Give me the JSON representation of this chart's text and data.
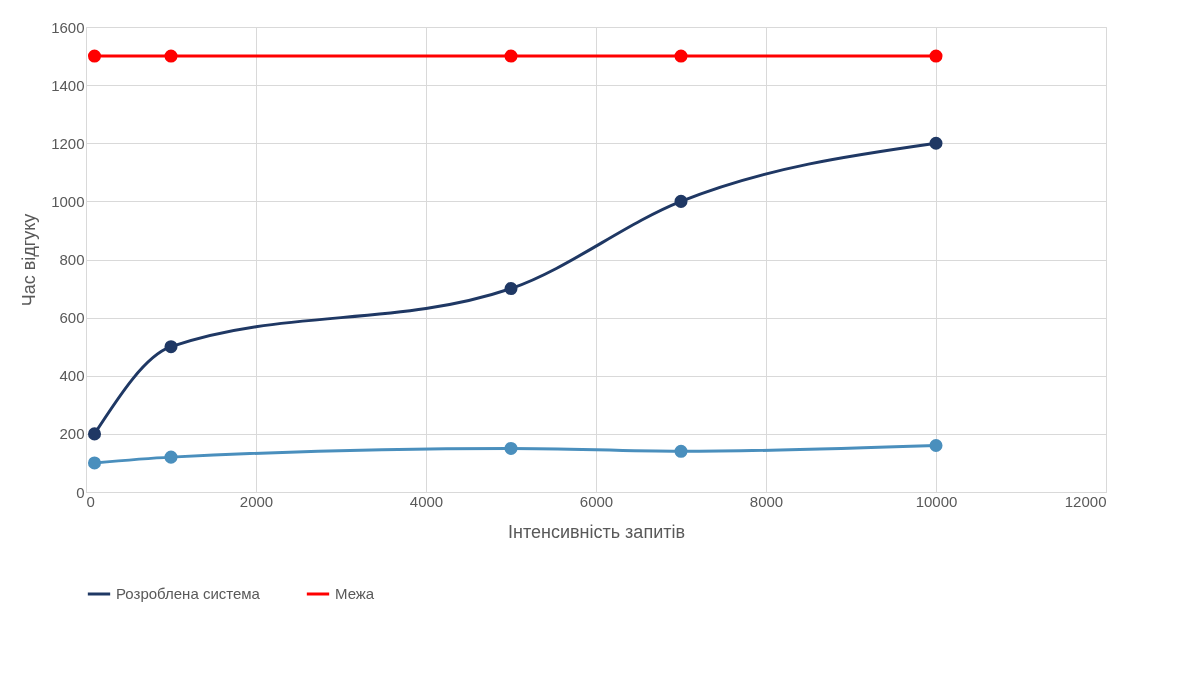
{
  "chart_data": {
    "type": "line",
    "xlabel": "Інтенсивність запитів",
    "ylabel": "Час відгуку",
    "x": [
      100,
      1000,
      5000,
      7000,
      10000
    ],
    "series": [
      {
        "name": "Розроблена система",
        "color": "#1f3864",
        "values": [
          200,
          500,
          700,
          1000,
          1200
        ]
      },
      {
        "color": "#4a8fbd",
        "values": [
          100,
          120,
          150,
          140,
          160
        ]
      },
      {
        "name": "Межа",
        "color": "#ff0000",
        "values": [
          1500,
          1500,
          1500,
          1500,
          1500
        ]
      }
    ],
    "xlim": [
      0,
      12000
    ],
    "xticks": [
      0,
      2000,
      4000,
      6000,
      8000,
      10000,
      12000
    ],
    "ylim": [
      0,
      1600
    ],
    "yticks": [
      0,
      200,
      400,
      600,
      800,
      1000,
      1200,
      1400,
      1600
    ],
    "grid": true,
    "legend": "bottom",
    "marker": "circle",
    "line_style": "solid"
  }
}
